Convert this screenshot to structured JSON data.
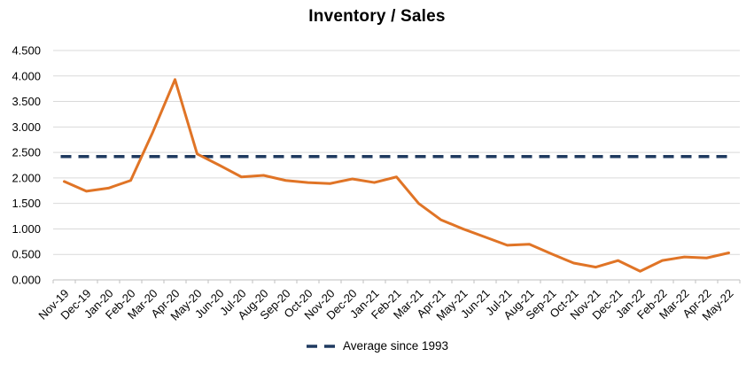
{
  "chart_data": {
    "type": "line",
    "title": "Inventory / Sales",
    "categories": [
      "Nov-19",
      "Dec-19",
      "Jan-20",
      "Feb-20",
      "Mar-20",
      "Apr-20",
      "May-20",
      "Jun-20",
      "Jul-20",
      "Aug-20",
      "Sep-20",
      "Oct-20",
      "Nov-20",
      "Dec-20",
      "Jan-21",
      "Feb-21",
      "Mar-21",
      "Apr-21",
      "May-21",
      "Jun-21",
      "Jul-21",
      "Aug-21",
      "Sep-21",
      "Oct-21",
      "Nov-21",
      "Dec-21",
      "Jan-22",
      "Feb-22",
      "Mar-22",
      "Apr-22",
      "May-22"
    ],
    "series": [
      {
        "name": "Inventory / Sales",
        "color": "#E07426",
        "values": [
          1.93,
          1.74,
          1.8,
          1.95,
          2.9,
          3.93,
          2.47,
          2.25,
          2.02,
          2.05,
          1.95,
          1.91,
          1.89,
          1.98,
          1.91,
          2.02,
          1.5,
          1.18,
          1.0,
          0.84,
          0.68,
          0.7,
          0.51,
          0.33,
          0.25,
          0.38,
          0.17,
          0.38,
          0.45,
          0.43,
          0.53
        ]
      }
    ],
    "average_line": {
      "label": "Average since 1993",
      "value": 2.42,
      "color": "#1F3A60",
      "style": "dashed"
    },
    "xlabel": "",
    "ylabel": "",
    "ylim": [
      0,
      4.5
    ],
    "ytick_step": 0.5,
    "ytick_labels": [
      "0.000",
      "0.500",
      "1.000",
      "1.500",
      "2.000",
      "2.500",
      "3.000",
      "3.500",
      "4.000",
      "4.500"
    ],
    "grid": true,
    "legend_position": "bottom",
    "colors": {
      "gridline": "#D9D9D9",
      "axis": "#BFBFBF",
      "text": "#000000",
      "background": "#FFFFFF"
    }
  }
}
